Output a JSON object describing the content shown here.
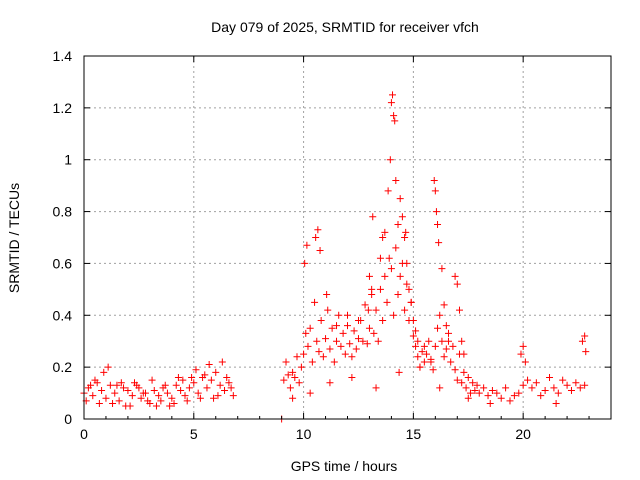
{
  "chart_data": {
    "type": "scatter",
    "title": "Day 079 of 2025, SRMTID for receiver vfch",
    "xlabel": "GPS time / hours",
    "ylabel": "SRMTID / TECUs",
    "xlim": [
      0,
      24
    ],
    "ylim": [
      0,
      1.4
    ],
    "xticks": [
      0,
      5,
      10,
      15,
      20
    ],
    "xtick_labels": [
      "0",
      "5",
      "10",
      "15",
      "20"
    ],
    "yticks": [
      0,
      0.2,
      0.4,
      0.6,
      0.8,
      1.0,
      1.2,
      1.4
    ],
    "ytick_labels": [
      "0",
      "0.2",
      "0.4",
      "0.6",
      "0.8",
      "1",
      "1.2",
      "1.4"
    ],
    "grid": true,
    "marker": "+",
    "color": "#ff0000",
    "series": [
      {
        "name": "SRMTID",
        "x": [
          0.0,
          0.2,
          0.4,
          0.6,
          0.8,
          1.0,
          1.2,
          1.4,
          1.6,
          1.8,
          2.0,
          2.2,
          2.4,
          2.6,
          2.8,
          3.0,
          3.2,
          3.4,
          3.6,
          3.8,
          4.0,
          4.2,
          4.4,
          4.6,
          4.8,
          5.0,
          5.2,
          5.4,
          5.6,
          5.8,
          6.0,
          6.2,
          6.4,
          6.6,
          6.8,
          0.1,
          0.5,
          0.9,
          1.3,
          1.7,
          2.1,
          2.5,
          2.9,
          3.3,
          3.7,
          4.1,
          4.5,
          4.9,
          5.3,
          5.7,
          6.1,
          6.5,
          0.3,
          0.7,
          1.1,
          1.5,
          1.9,
          2.3,
          2.7,
          3.1,
          3.5,
          3.9,
          4.3,
          4.7,
          5.1,
          5.5,
          5.9,
          6.3,
          6.7,
          9.0,
          9.1,
          9.2,
          9.3,
          9.4,
          9.5,
          9.6,
          9.7,
          9.8,
          9.9,
          10.0,
          10.1,
          10.2,
          10.3,
          10.4,
          10.5,
          10.6,
          10.7,
          10.8,
          10.9,
          11.0,
          11.1,
          11.2,
          11.3,
          11.4,
          11.5,
          11.6,
          11.7,
          11.8,
          11.9,
          12.0,
          12.1,
          12.2,
          12.3,
          12.4,
          12.5,
          12.6,
          12.7,
          12.8,
          12.9,
          13.0,
          13.1,
          13.2,
          13.3,
          13.4,
          13.5,
          13.6,
          13.7,
          13.8,
          13.9,
          14.0,
          14.1,
          14.2,
          14.3,
          14.4,
          14.5,
          14.6,
          14.7,
          14.8,
          14.9,
          15.0,
          15.1,
          15.2,
          15.3,
          15.4,
          15.5,
          15.6,
          15.7,
          15.8,
          15.9,
          16.0,
          16.1,
          16.2,
          16.3,
          16.4,
          16.5,
          16.6,
          16.7,
          16.8,
          16.9,
          17.0,
          17.1,
          17.2,
          17.3,
          17.4,
          17.5,
          17.6,
          17.7,
          17.8,
          17.9,
          18.0,
          18.2,
          18.4,
          18.6,
          18.8,
          19.0,
          19.2,
          19.4,
          19.6,
          19.8,
          20.0,
          20.2,
          20.4,
          20.6,
          20.8,
          21.0,
          21.2,
          21.4,
          21.6,
          21.8,
          22.0,
          22.2,
          22.4,
          22.6,
          22.8,
          10.05,
          10.15,
          10.55,
          10.65,
          10.75,
          11.05,
          11.5,
          12.0,
          12.5,
          12.95,
          13.0,
          13.1,
          13.15,
          13.5,
          13.6,
          13.7,
          13.85,
          13.95,
          14.0,
          14.05,
          14.1,
          14.15,
          14.2,
          14.3,
          14.4,
          14.5,
          14.6,
          14.65,
          14.7,
          14.8,
          14.9,
          15.0,
          15.1,
          15.2,
          15.5,
          15.8,
          15.95,
          16.0,
          16.05,
          16.1,
          16.15,
          16.3,
          16.4,
          16.5,
          16.6,
          16.9,
          17.0,
          17.1,
          17.2,
          17.3,
          9.5,
          10.3,
          11.2,
          12.2,
          13.3,
          14.35,
          15.3,
          16.2,
          17.5,
          18.5,
          19.9,
          20.0,
          20.1,
          21.5,
          22.7,
          22.8,
          22.85
        ],
        "y": [
          0.1,
          0.12,
          0.09,
          0.14,
          0.11,
          0.08,
          0.13,
          0.1,
          0.07,
          0.12,
          0.11,
          0.09,
          0.13,
          0.08,
          0.1,
          0.06,
          0.11,
          0.09,
          0.12,
          0.1,
          0.08,
          0.13,
          0.11,
          0.09,
          0.12,
          0.14,
          0.1,
          0.16,
          0.12,
          0.15,
          0.18,
          0.13,
          0.11,
          0.14,
          0.09,
          0.07,
          0.15,
          0.18,
          0.06,
          0.14,
          0.05,
          0.12,
          0.07,
          0.05,
          0.13,
          0.06,
          0.15,
          0.16,
          0.08,
          0.21,
          0.09,
          0.16,
          0.13,
          0.06,
          0.2,
          0.13,
          0.05,
          0.14,
          0.1,
          0.15,
          0.07,
          0.05,
          0.16,
          0.07,
          0.19,
          0.17,
          0.08,
          0.22,
          0.12,
          0.0,
          0.15,
          0.22,
          0.17,
          0.12,
          0.18,
          0.16,
          0.24,
          0.14,
          0.2,
          0.25,
          0.33,
          0.28,
          0.35,
          0.22,
          0.45,
          0.3,
          0.26,
          0.38,
          0.24,
          0.31,
          0.42,
          0.27,
          0.35,
          0.22,
          0.3,
          0.4,
          0.28,
          0.33,
          0.25,
          0.36,
          0.29,
          0.24,
          0.34,
          0.27,
          0.31,
          0.38,
          0.3,
          0.44,
          0.29,
          0.35,
          0.48,
          0.33,
          0.42,
          0.3,
          0.5,
          0.38,
          0.55,
          0.45,
          0.62,
          0.58,
          0.4,
          0.66,
          0.48,
          0.55,
          0.6,
          0.42,
          0.52,
          0.38,
          0.45,
          0.32,
          0.28,
          0.24,
          0.2,
          0.26,
          0.22,
          0.25,
          0.3,
          0.23,
          0.19,
          0.28,
          0.35,
          0.4,
          0.3,
          0.24,
          0.27,
          0.33,
          0.22,
          0.28,
          0.19,
          0.15,
          0.25,
          0.14,
          0.18,
          0.12,
          0.16,
          0.1,
          0.14,
          0.11,
          0.13,
          0.1,
          0.12,
          0.09,
          0.11,
          0.1,
          0.08,
          0.12,
          0.07,
          0.09,
          0.1,
          0.13,
          0.15,
          0.12,
          0.14,
          0.09,
          0.11,
          0.16,
          0.12,
          0.1,
          0.15,
          0.13,
          0.11,
          0.14,
          0.12,
          0.13,
          0.6,
          0.67,
          0.7,
          0.73,
          0.65,
          0.48,
          0.36,
          0.4,
          0.38,
          0.42,
          0.55,
          0.5,
          0.78,
          0.62,
          0.7,
          0.72,
          0.88,
          1.0,
          1.22,
          1.25,
          1.17,
          1.15,
          0.92,
          0.75,
          0.85,
          0.78,
          0.7,
          0.72,
          0.6,
          0.5,
          0.45,
          0.38,
          0.34,
          0.3,
          0.28,
          0.22,
          0.92,
          0.88,
          0.8,
          0.75,
          0.68,
          0.58,
          0.44,
          0.36,
          0.3,
          0.55,
          0.52,
          0.42,
          0.3,
          0.25,
          0.08,
          0.1,
          0.14,
          0.16,
          0.12,
          0.18,
          0.2,
          0.12,
          0.08,
          0.06,
          0.25,
          0.28,
          0.22,
          0.06,
          0.3,
          0.32,
          0.26
        ]
      }
    ]
  }
}
